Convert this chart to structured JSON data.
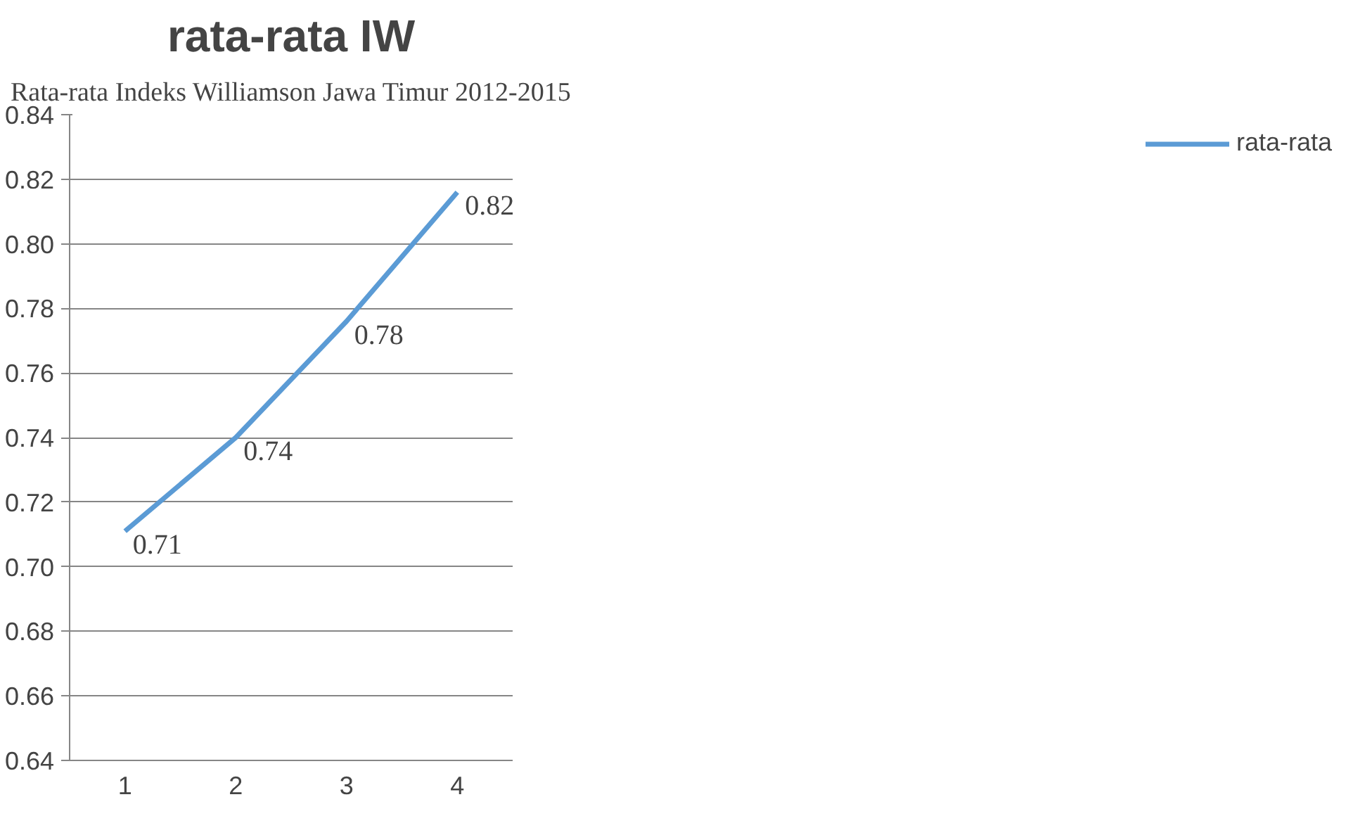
{
  "chart_data": {
    "type": "line",
    "title": "rata-rata IW",
    "annotations": [
      "Rata-rata Indeks Williamson Jawa Timur 2012-2015"
    ],
    "categories": [
      "1",
      "2",
      "3",
      "4"
    ],
    "series": [
      {
        "name": "rata-rata",
        "color": "#5b9bd5",
        "values": [
          0.711,
          0.74,
          0.776,
          0.816
        ],
        "value_labels": [
          "0.71",
          "0.74",
          "0.78",
          "0.82"
        ]
      }
    ],
    "ylim": [
      0.64,
      0.84
    ],
    "yticks": [
      0.64,
      0.66,
      0.68,
      {
        "value": 0.7,
        "label": "0.70"
      },
      0.72,
      0.74,
      0.76,
      0.78,
      {
        "value": 0.8,
        "label": "0.80"
      },
      0.82,
      0.84
    ],
    "grid": "y",
    "legend": "right",
    "marker": "none",
    "line_style": "solid"
  }
}
